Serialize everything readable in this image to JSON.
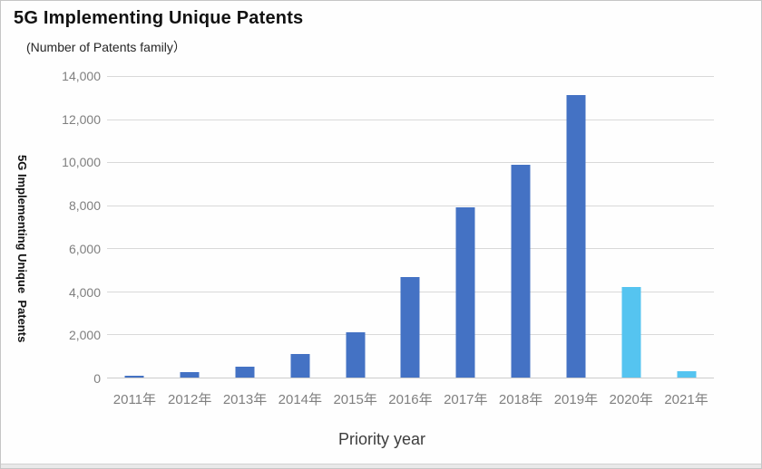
{
  "page": {
    "title": "5G Implementing Unique Patents",
    "subtitle": "(Number of Patents family）"
  },
  "colors": {
    "bar_primary": "#4472c4",
    "bar_highlight": "#55c4f0",
    "gridline": "#d9d9d9",
    "axis_line": "#cccccc",
    "tick_label": "#7f7f7f",
    "title_text": "#121212",
    "xlabel_text": "#3d3d3d"
  },
  "chart_data": {
    "type": "bar",
    "title": "5G Implementing Unique Patents",
    "subtitle": "(Number of Patents family）",
    "categories": [
      "2011年",
      "2012年",
      "2013年",
      "2014年",
      "2015年",
      "2016年",
      "2017年",
      "2018年",
      "2019年",
      "2020年",
      "2021年"
    ],
    "values": [
      100,
      250,
      500,
      1100,
      2100,
      4650,
      7900,
      9900,
      13100,
      4200,
      300
    ],
    "bar_colors": [
      "#4472c4",
      "#4472c4",
      "#4472c4",
      "#4472c4",
      "#4472c4",
      "#4472c4",
      "#4472c4",
      "#4472c4",
      "#4472c4",
      "#55c4f0",
      "#55c4f0"
    ],
    "xlabel": "Priority year",
    "ylabel": "5G Implementing Unique  Patents",
    "ymax": 14000,
    "ylim": [
      0,
      14000
    ],
    "ytick_step": 2000,
    "yticks": [
      "14,000",
      "12,000",
      "10,000",
      "8,000",
      "6,000",
      "4,000",
      "2,000",
      "0"
    ],
    "grid": true,
    "legend": false
  }
}
